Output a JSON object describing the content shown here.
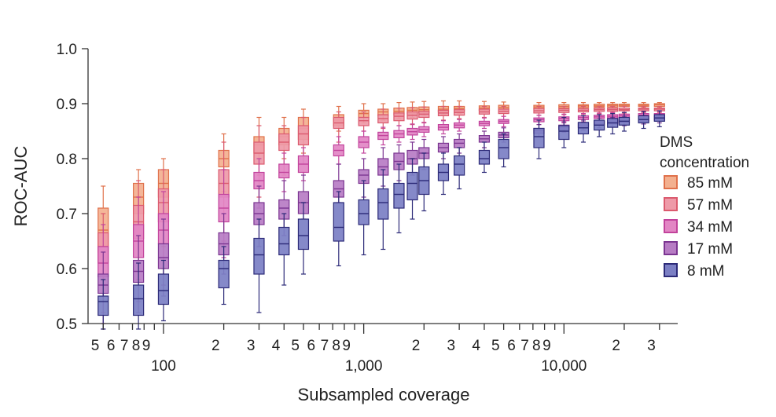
{
  "chart_data": {
    "type": "box",
    "x_scale": "log",
    "xlabel": "Subsampled coverage",
    "ylabel": "ROC-AUC",
    "ylim": [
      0.5,
      1.0
    ],
    "xlim": [
      42,
      37000
    ],
    "y_ticks": [
      "0.5",
      "0.6",
      "0.7",
      "0.8",
      "0.9",
      "1.0"
    ],
    "x_minor_ticks": [
      {
        "value": 50,
        "label": "5"
      },
      {
        "value": 60,
        "label": "6"
      },
      {
        "value": 70,
        "label": "7"
      },
      {
        "value": 80,
        "label": "8"
      },
      {
        "value": 90,
        "label": "9"
      },
      {
        "value": 200,
        "label": "2"
      },
      {
        "value": 300,
        "label": "3"
      },
      {
        "value": 400,
        "label": "4"
      },
      {
        "value": 500,
        "label": "5"
      },
      {
        "value": 600,
        "label": "6"
      },
      {
        "value": 700,
        "label": "7"
      },
      {
        "value": 800,
        "label": "8"
      },
      {
        "value": 900,
        "label": "9"
      },
      {
        "value": 2000,
        "label": "2"
      },
      {
        "value": 3000,
        "label": "3"
      },
      {
        "value": 4000,
        "label": "4"
      },
      {
        "value": 5000,
        "label": "5"
      },
      {
        "value": 6000,
        "label": "6"
      },
      {
        "value": 7000,
        "label": "7"
      },
      {
        "value": 8000,
        "label": "8"
      },
      {
        "value": 9000,
        "label": "9"
      },
      {
        "value": 20000,
        "label": "2"
      },
      {
        "value": 30000,
        "label": "3"
      }
    ],
    "x_major_ticks": [
      {
        "value": 100,
        "label": "100"
      },
      {
        "value": 1000,
        "label": "1,000"
      },
      {
        "value": 10000,
        "label": "10,000"
      }
    ],
    "legend": {
      "title_lines": [
        "DMS",
        "concentration"
      ],
      "position": "right"
    },
    "x": [
      50,
      75,
      100,
      200,
      300,
      400,
      500,
      750,
      1000,
      1250,
      1500,
      1750,
      2000,
      2500,
      3000,
      4000,
      5000,
      7500,
      10000,
      12500,
      15000,
      17500,
      20000,
      25000,
      30000
    ],
    "stats_format": "[min, q1, median, q3, max]",
    "series": [
      {
        "name": "85 mM",
        "fill": "#f3b08f",
        "stroke": "#e0714b",
        "stats": [
          [
            0.54,
            0.63,
            0.67,
            0.71,
            0.75
          ],
          [
            0.61,
            0.7,
            0.73,
            0.755,
            0.78
          ],
          [
            0.64,
            0.73,
            0.755,
            0.78,
            0.8
          ],
          [
            0.74,
            0.785,
            0.8,
            0.815,
            0.845
          ],
          [
            0.77,
            0.81,
            0.825,
            0.84,
            0.875
          ],
          [
            0.8,
            0.825,
            0.84,
            0.855,
            0.875
          ],
          [
            0.81,
            0.835,
            0.855,
            0.875,
            0.89
          ],
          [
            0.85,
            0.86,
            0.87,
            0.88,
            0.895
          ],
          [
            0.865,
            0.875,
            0.882,
            0.888,
            0.9
          ],
          [
            0.87,
            0.878,
            0.885,
            0.89,
            0.9
          ],
          [
            0.873,
            0.88,
            0.886,
            0.892,
            0.902
          ],
          [
            0.875,
            0.882,
            0.888,
            0.893,
            0.903
          ],
          [
            0.878,
            0.884,
            0.889,
            0.894,
            0.904
          ],
          [
            0.88,
            0.885,
            0.89,
            0.895,
            0.905
          ],
          [
            0.882,
            0.886,
            0.891,
            0.895,
            0.905
          ],
          [
            0.885,
            0.888,
            0.892,
            0.896,
            0.904
          ],
          [
            0.887,
            0.89,
            0.893,
            0.897,
            0.903
          ],
          [
            0.888,
            0.891,
            0.894,
            0.897,
            0.902
          ],
          [
            0.889,
            0.892,
            0.895,
            0.898,
            0.902
          ],
          [
            0.89,
            0.893,
            0.896,
            0.898,
            0.902
          ],
          [
            0.891,
            0.894,
            0.896,
            0.899,
            0.902
          ],
          [
            0.892,
            0.894,
            0.897,
            0.899,
            0.902
          ],
          [
            0.892,
            0.895,
            0.897,
            0.899,
            0.902
          ],
          [
            0.893,
            0.895,
            0.897,
            0.899,
            0.902
          ],
          [
            0.893,
            0.895,
            0.898,
            0.9,
            0.902
          ]
        ]
      },
      {
        "name": "57 mM",
        "fill": "#ee9aa8",
        "stroke": "#db5a6e",
        "stats": [
          [
            0.52,
            0.61,
            0.64,
            0.665,
            0.7
          ],
          [
            0.58,
            0.655,
            0.685,
            0.715,
            0.76
          ],
          [
            0.6,
            0.685,
            0.72,
            0.745,
            0.78
          ],
          [
            0.65,
            0.73,
            0.755,
            0.78,
            0.83
          ],
          [
            0.73,
            0.79,
            0.81,
            0.83,
            0.86
          ],
          [
            0.77,
            0.815,
            0.83,
            0.845,
            0.86
          ],
          [
            0.79,
            0.825,
            0.845,
            0.86,
            0.875
          ],
          [
            0.83,
            0.855,
            0.865,
            0.875,
            0.885
          ],
          [
            0.85,
            0.86,
            0.869,
            0.875,
            0.885
          ],
          [
            0.855,
            0.865,
            0.873,
            0.88,
            0.89
          ],
          [
            0.86,
            0.869,
            0.877,
            0.883,
            0.892
          ],
          [
            0.862,
            0.872,
            0.879,
            0.885,
            0.893
          ],
          [
            0.865,
            0.875,
            0.881,
            0.886,
            0.894
          ],
          [
            0.87,
            0.878,
            0.883,
            0.888,
            0.895
          ],
          [
            0.873,
            0.879,
            0.884,
            0.889,
            0.895
          ],
          [
            0.875,
            0.881,
            0.885,
            0.89,
            0.895
          ],
          [
            0.877,
            0.882,
            0.886,
            0.89,
            0.895
          ],
          [
            0.879,
            0.883,
            0.887,
            0.891,
            0.895
          ],
          [
            0.88,
            0.884,
            0.888,
            0.891,
            0.895
          ],
          [
            0.881,
            0.885,
            0.888,
            0.891,
            0.895
          ],
          [
            0.882,
            0.886,
            0.889,
            0.892,
            0.895
          ],
          [
            0.883,
            0.886,
            0.889,
            0.892,
            0.895
          ],
          [
            0.883,
            0.887,
            0.889,
            0.892,
            0.895
          ],
          [
            0.884,
            0.887,
            0.89,
            0.892,
            0.895
          ],
          [
            0.884,
            0.887,
            0.89,
            0.892,
            0.895
          ]
        ]
      },
      {
        "name": "34 mM",
        "fill": "#e286c4",
        "stroke": "#c2439c",
        "stats": [
          [
            0.5,
            0.585,
            0.61,
            0.64,
            0.68
          ],
          [
            0.54,
            0.62,
            0.65,
            0.68,
            0.73
          ],
          [
            0.57,
            0.645,
            0.67,
            0.7,
            0.74
          ],
          [
            0.62,
            0.685,
            0.71,
            0.735,
            0.78
          ],
          [
            0.71,
            0.745,
            0.76,
            0.775,
            0.8
          ],
          [
            0.74,
            0.765,
            0.775,
            0.79,
            0.81
          ],
          [
            0.76,
            0.775,
            0.79,
            0.805,
            0.82
          ],
          [
            0.79,
            0.805,
            0.815,
            0.825,
            0.84
          ],
          [
            0.81,
            0.82,
            0.83,
            0.84,
            0.85
          ],
          [
            0.825,
            0.835,
            0.842,
            0.848,
            0.857
          ],
          [
            0.83,
            0.838,
            0.845,
            0.851,
            0.86
          ],
          [
            0.835,
            0.843,
            0.849,
            0.855,
            0.863
          ],
          [
            0.84,
            0.848,
            0.853,
            0.858,
            0.866
          ],
          [
            0.845,
            0.852,
            0.857,
            0.862,
            0.869
          ],
          [
            0.85,
            0.856,
            0.861,
            0.865,
            0.871
          ],
          [
            0.855,
            0.86,
            0.864,
            0.868,
            0.874
          ],
          [
            0.858,
            0.864,
            0.868,
            0.871,
            0.877
          ],
          [
            0.862,
            0.867,
            0.871,
            0.874,
            0.879
          ],
          [
            0.865,
            0.869,
            0.873,
            0.876,
            0.881
          ],
          [
            0.867,
            0.871,
            0.875,
            0.878,
            0.882
          ],
          [
            0.868,
            0.873,
            0.876,
            0.879,
            0.883
          ],
          [
            0.87,
            0.874,
            0.877,
            0.88,
            0.884
          ],
          [
            0.871,
            0.875,
            0.878,
            0.881,
            0.884
          ],
          [
            0.872,
            0.876,
            0.879,
            0.882,
            0.885
          ],
          [
            0.873,
            0.877,
            0.88,
            0.882,
            0.886
          ]
        ]
      },
      {
        "name": "17 mM",
        "fill": "#b77cc4",
        "stroke": "#7b3591",
        "stats": [
          [
            0.49,
            0.555,
            0.57,
            0.59,
            0.63
          ],
          [
            0.52,
            0.575,
            0.595,
            0.615,
            0.66
          ],
          [
            0.55,
            0.6,
            0.62,
            0.645,
            0.69
          ],
          [
            0.59,
            0.625,
            0.645,
            0.665,
            0.7
          ],
          [
            0.64,
            0.68,
            0.7,
            0.72,
            0.75
          ],
          [
            0.66,
            0.69,
            0.71,
            0.725,
            0.76
          ],
          [
            0.69,
            0.7,
            0.72,
            0.74,
            0.77
          ],
          [
            0.72,
            0.73,
            0.745,
            0.76,
            0.79
          ],
          [
            0.73,
            0.755,
            0.77,
            0.78,
            0.8
          ],
          [
            0.75,
            0.77,
            0.785,
            0.8,
            0.82
          ],
          [
            0.76,
            0.78,
            0.795,
            0.81,
            0.825
          ],
          [
            0.77,
            0.79,
            0.8,
            0.815,
            0.83
          ],
          [
            0.78,
            0.8,
            0.81,
            0.82,
            0.835
          ],
          [
            0.8,
            0.812,
            0.82,
            0.828,
            0.84
          ],
          [
            0.81,
            0.82,
            0.828,
            0.835,
            0.845
          ],
          [
            0.82,
            0.83,
            0.836,
            0.842,
            0.85
          ],
          [
            0.83,
            0.838,
            0.843,
            0.848,
            0.856
          ],
          [
            0.84,
            0.846,
            0.851,
            0.855,
            0.862
          ],
          [
            0.848,
            0.853,
            0.857,
            0.861,
            0.867
          ],
          [
            0.852,
            0.857,
            0.861,
            0.865,
            0.87
          ],
          [
            0.856,
            0.861,
            0.864,
            0.868,
            0.873
          ],
          [
            0.858,
            0.863,
            0.867,
            0.87,
            0.875
          ],
          [
            0.86,
            0.865,
            0.869,
            0.872,
            0.877
          ],
          [
            0.863,
            0.868,
            0.871,
            0.874,
            0.878
          ],
          [
            0.865,
            0.87,
            0.873,
            0.876,
            0.88
          ]
        ]
      },
      {
        "name": "8 mM",
        "fill": "#7b7fc4",
        "stroke": "#2c2a78",
        "stats": [
          [
            0.49,
            0.515,
            0.54,
            0.55,
            0.58
          ],
          [
            0.49,
            0.515,
            0.545,
            0.57,
            0.61
          ],
          [
            0.505,
            0.535,
            0.56,
            0.59,
            0.615
          ],
          [
            0.535,
            0.565,
            0.6,
            0.615,
            0.64
          ],
          [
            0.52,
            0.59,
            0.625,
            0.655,
            0.69
          ],
          [
            0.57,
            0.625,
            0.645,
            0.675,
            0.7
          ],
          [
            0.59,
            0.635,
            0.66,
            0.69,
            0.72
          ],
          [
            0.605,
            0.65,
            0.675,
            0.72,
            0.74
          ],
          [
            0.625,
            0.68,
            0.7,
            0.725,
            0.76
          ],
          [
            0.635,
            0.69,
            0.72,
            0.745,
            0.78
          ],
          [
            0.665,
            0.71,
            0.735,
            0.755,
            0.79
          ],
          [
            0.69,
            0.725,
            0.755,
            0.775,
            0.8
          ],
          [
            0.705,
            0.735,
            0.76,
            0.785,
            0.81
          ],
          [
            0.735,
            0.76,
            0.775,
            0.79,
            0.81
          ],
          [
            0.745,
            0.77,
            0.79,
            0.805,
            0.82
          ],
          [
            0.775,
            0.79,
            0.8,
            0.815,
            0.83
          ],
          [
            0.785,
            0.8,
            0.82,
            0.835,
            0.845
          ],
          [
            0.8,
            0.82,
            0.84,
            0.855,
            0.87
          ],
          [
            0.82,
            0.835,
            0.85,
            0.86,
            0.875
          ],
          [
            0.83,
            0.845,
            0.856,
            0.866,
            0.878
          ],
          [
            0.84,
            0.852,
            0.861,
            0.87,
            0.88
          ],
          [
            0.845,
            0.857,
            0.865,
            0.873,
            0.882
          ],
          [
            0.85,
            0.861,
            0.868,
            0.875,
            0.884
          ],
          [
            0.855,
            0.865,
            0.871,
            0.878,
            0.886
          ],
          [
            0.858,
            0.868,
            0.874,
            0.88,
            0.887
          ]
        ]
      }
    ]
  }
}
